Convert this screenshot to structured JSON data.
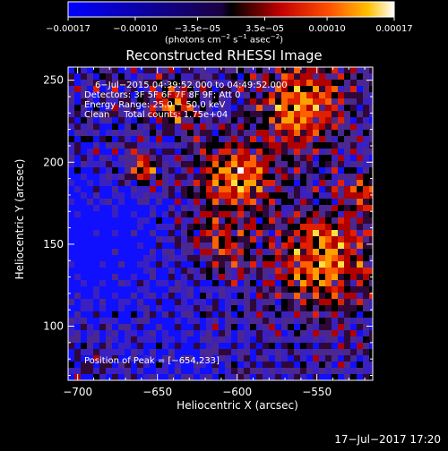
{
  "chart_data": {
    "type": "heatmap",
    "title": "Reconstructed RHESSI Image",
    "xlabel": "Heliocentric X (arcsec)",
    "ylabel": "Heliocentric Y (arcsec)",
    "xlim": [
      -706,
      -515
    ],
    "ylim": [
      67,
      258
    ],
    "x_ticks": [
      -700,
      -650,
      -600,
      -550
    ],
    "x_tick_labels": [
      "−700",
      "−650",
      "−600",
      "−550"
    ],
    "y_ticks": [
      100,
      150,
      200,
      250
    ],
    "y_tick_labels": [
      "100",
      "150",
      "200",
      "250"
    ],
    "colorbar": {
      "range": [
        -0.00017,
        0.00017
      ],
      "tick_labels": [
        "−0.00017",
        "−0.00010",
        "−3.5e−05",
        "3.5e−05",
        "0.00010",
        "0.00017"
      ],
      "units_prefix": "(photons cm",
      "units_exp1": "−2",
      "units_mid": " s",
      "units_exp2": "−1",
      "units_mid2": " asec",
      "units_exp3": "−2",
      "units_suffix": ")"
    },
    "annotations": {
      "time_range": "6−Jul−2015 04:39:52.000 to 04:49:52.000",
      "detectors": "Detectors: 3F 5F 6F 7F 8F 9F; Att 0",
      "energy": "Energy Range: 25.0 − 50.0 keV",
      "clean": "Clean     Total counts: 1.75e+04",
      "peak": "Position of Peak = [−654,233]"
    },
    "peak_position": [
      -654,
      233
    ],
    "colors": {
      "background": "#000000",
      "negative": "#0000ff",
      "zero": "#000000",
      "positive_low": "#aa0000",
      "positive_high": "#ffff00",
      "max": "#ffffff"
    }
  },
  "footer": {
    "timestamp": "17−Jul−2017 17:20"
  }
}
